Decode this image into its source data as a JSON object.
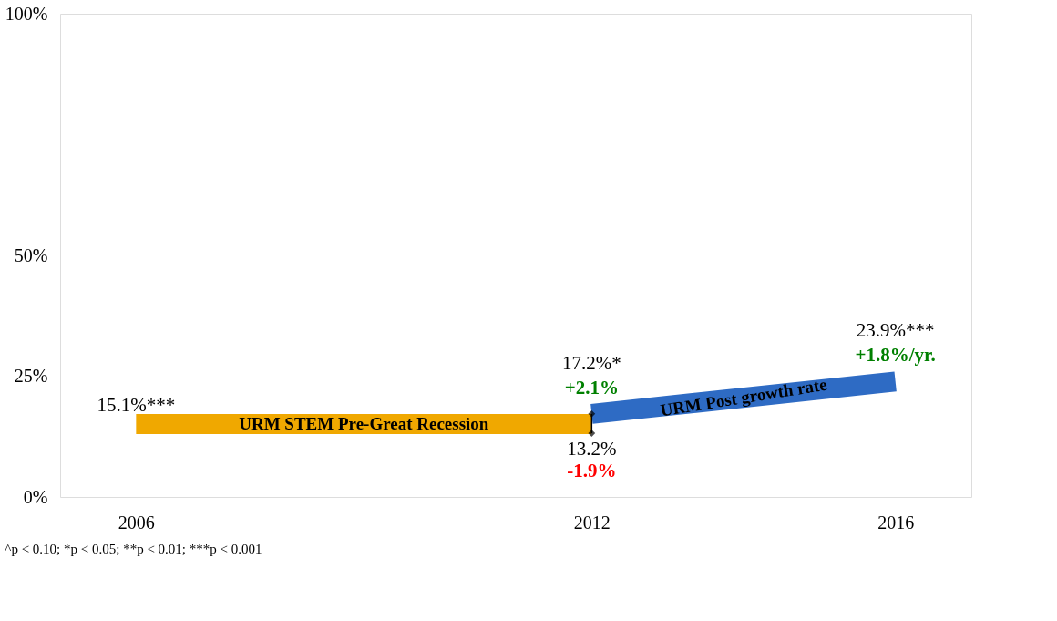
{
  "chart_data": {
    "type": "line",
    "xlim": [
      2005,
      2017
    ],
    "xticks": [
      2006,
      2012,
      2016
    ],
    "ylim": [
      0,
      100
    ],
    "yticks": [
      {
        "value": 0,
        "label": "0%"
      },
      {
        "value": 25,
        "label": "25%"
      },
      {
        "value": 50,
        "label": "50%"
      },
      {
        "value": 100,
        "label": "100%"
      }
    ],
    "grid": false,
    "series": [
      {
        "name": "URM STEM Pre-Great Recession",
        "color": "#f0a800",
        "x": [
          2006,
          2012
        ],
        "values": [
          15.1,
          15.1
        ],
        "marker": "none"
      },
      {
        "name": "URM Post growth rate",
        "color": "#2e6bc4",
        "x": [
          2012,
          2016
        ],
        "values": [
          17.2,
          23.9
        ],
        "marker": "none"
      },
      {
        "type": "scatter",
        "color": "#000000",
        "x": [
          2012,
          2012
        ],
        "values": [
          13.2,
          17.2
        ],
        "marker": "diamond"
      }
    ],
    "annotations": [
      {
        "text": "15.1%***",
        "x": 2006,
        "y": 15.1
      },
      {
        "text": "13.2%",
        "x": 2012,
        "y": 13.2
      },
      {
        "text": "-1.9%",
        "x": 2012,
        "y": 13.2
      },
      {
        "text": "17.2%*",
        "x": 2012,
        "y": 17.2
      },
      {
        "text": "+2.1%",
        "x": 2012,
        "y": 17.2
      },
      {
        "text": "23.9%***",
        "x": 2016,
        "y": 23.9
      },
      {
        "text": "+1.8%/yr.",
        "x": 2016,
        "y": 23.9
      },
      "^p < 0.10; *p < 0.05; **p < 0.01; ***p < 0.001"
    ]
  }
}
